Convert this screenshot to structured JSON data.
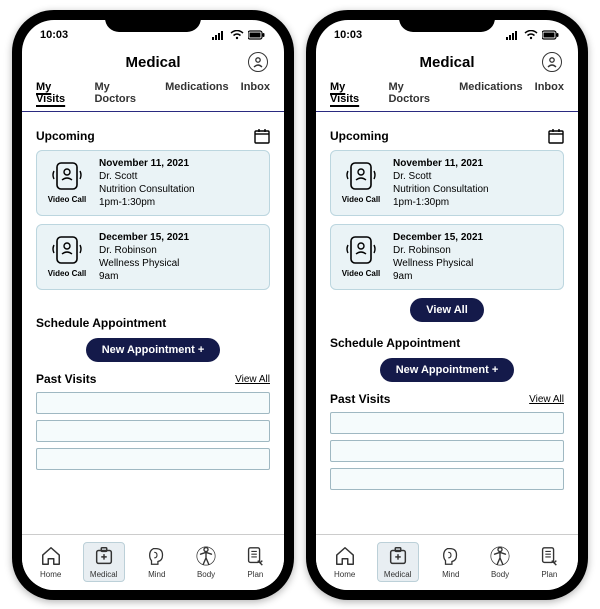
{
  "colors": {
    "card_bg": "#eaf3f6",
    "card_border": "#bcd6df",
    "pill_bg": "#141a4a",
    "pill_text": "#ffffff",
    "tab_underline": "#2a2a80"
  },
  "phones": [
    {
      "status_time": "10:03",
      "header_title": "Medical",
      "tabs": [
        {
          "label": "My Visits",
          "active": true
        },
        {
          "label": "My Doctors",
          "active": false
        },
        {
          "label": "Medications",
          "active": false
        },
        {
          "label": "Inbox",
          "active": false
        }
      ],
      "upcoming": {
        "title": "Upcoming",
        "items": [
          {
            "kind": "Video Call",
            "date": "November 11, 2021",
            "doctor": "Dr. Scott",
            "service": "Nutrition Consultation",
            "time": "1pm-1:30pm"
          },
          {
            "kind": "Video Call",
            "date": "December 15, 2021",
            "doctor": "Dr.  Robinson",
            "service": "Wellness Physical",
            "time": "9am"
          }
        ],
        "show_view_all_button": false,
        "view_all_label": "View All"
      },
      "schedule": {
        "title": "Schedule Appointment",
        "button": "New Appointment  +"
      },
      "past": {
        "title": "Past Visits",
        "view_all": "View All",
        "rows": 3
      },
      "nav": [
        {
          "label": "Home",
          "active": false,
          "icon": "home"
        },
        {
          "label": "Medical",
          "active": true,
          "icon": "medical"
        },
        {
          "label": "Mind",
          "active": false,
          "icon": "mind"
        },
        {
          "label": "Body",
          "active": false,
          "icon": "body"
        },
        {
          "label": "Plan",
          "active": false,
          "icon": "plan"
        }
      ]
    },
    {
      "status_time": "10:03",
      "header_title": "Medical",
      "tabs": [
        {
          "label": "My Visits",
          "active": true
        },
        {
          "label": "My Doctors",
          "active": false
        },
        {
          "label": "Medications",
          "active": false
        },
        {
          "label": "Inbox",
          "active": false
        }
      ],
      "upcoming": {
        "title": "Upcoming",
        "items": [
          {
            "kind": "Video Call",
            "date": "November 11, 2021",
            "doctor": "Dr. Scott",
            "service": "Nutrition Consultation",
            "time": "1pm-1:30pm"
          },
          {
            "kind": "Video Call",
            "date": "December 15, 2021",
            "doctor": "Dr.  Robinson",
            "service": "Wellness Physical",
            "time": "9am"
          }
        ],
        "show_view_all_button": true,
        "view_all_label": "View All"
      },
      "schedule": {
        "title": "Schedule Appointment",
        "button": "New Appointment  +"
      },
      "past": {
        "title": "Past Visits",
        "view_all": "View All",
        "rows": 3
      },
      "nav": [
        {
          "label": "Home",
          "active": false,
          "icon": "home"
        },
        {
          "label": "Medical",
          "active": true,
          "icon": "medical"
        },
        {
          "label": "Mind",
          "active": false,
          "icon": "mind"
        },
        {
          "label": "Body",
          "active": false,
          "icon": "body"
        },
        {
          "label": "Plan",
          "active": false,
          "icon": "plan"
        }
      ]
    }
  ]
}
